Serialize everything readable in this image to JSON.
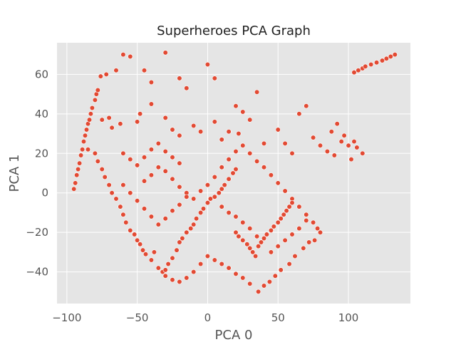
{
  "chart_data": {
    "type": "scatter",
    "title": "Superheroes PCA Graph",
    "xlabel": "PCA 0",
    "ylabel": "PCA 1",
    "xlim": [
      -107,
      144
    ],
    "ylim": [
      -56,
      76
    ],
    "x_ticks": [
      -100,
      -50,
      0,
      50,
      100
    ],
    "y_ticks": [
      -40,
      -20,
      0,
      20,
      40,
      60
    ],
    "x_tick_labels": [
      "−100",
      "−50",
      "0",
      "50",
      "100"
    ],
    "y_tick_labels": [
      "−40",
      "−20",
      "0",
      "20",
      "40",
      "60"
    ],
    "grid": true,
    "legend": "none",
    "colors": {
      "points": "#e24a33",
      "background": "#e5e5e5",
      "grid": "#ffffff"
    },
    "series": [
      {
        "points": [
          [
            -95,
            2
          ],
          [
            -94,
            5
          ],
          [
            -93,
            9
          ],
          [
            -92,
            12
          ],
          [
            -91,
            15
          ],
          [
            -90,
            19
          ],
          [
            -89,
            22
          ],
          [
            -88,
            26
          ],
          [
            -87,
            29
          ],
          [
            -86,
            32
          ],
          [
            -85,
            35
          ],
          [
            -84,
            37
          ],
          [
            -83,
            40
          ],
          [
            -82,
            43
          ],
          [
            -80,
            47
          ],
          [
            -79,
            50
          ],
          [
            -78,
            52
          ],
          [
            -76,
            59
          ],
          [
            -72,
            60
          ],
          [
            -65,
            62
          ],
          [
            -60,
            70
          ],
          [
            -55,
            69
          ],
          [
            -45,
            62
          ],
          [
            -40,
            56
          ],
          [
            -30,
            71
          ],
          [
            -20,
            58
          ],
          [
            -15,
            53
          ],
          [
            0,
            65
          ],
          [
            5,
            58
          ],
          [
            35,
            51
          ],
          [
            -70,
            38
          ],
          [
            -75,
            37
          ],
          [
            -68,
            33
          ],
          [
            -62,
            35
          ],
          [
            -50,
            36
          ],
          [
            -48,
            40
          ],
          [
            -40,
            45
          ],
          [
            -30,
            38
          ],
          [
            -25,
            32
          ],
          [
            -20,
            29
          ],
          [
            -10,
            34
          ],
          [
            -5,
            31
          ],
          [
            5,
            36
          ],
          [
            10,
            27
          ],
          [
            15,
            31
          ],
          [
            20,
            44
          ],
          [
            25,
            41
          ],
          [
            22,
            30
          ],
          [
            30,
            37
          ],
          [
            40,
            25
          ],
          [
            50,
            32
          ],
          [
            55,
            25
          ],
          [
            60,
            20
          ],
          [
            65,
            40
          ],
          [
            70,
            44
          ],
          [
            75,
            28
          ],
          [
            80,
            24
          ],
          [
            85,
            21
          ],
          [
            90,
            19
          ],
          [
            95,
            26
          ],
          [
            100,
            24
          ],
          [
            102,
            17
          ],
          [
            104,
            26
          ],
          [
            106,
            23
          ],
          [
            110,
            20
          ],
          [
            97,
            29
          ],
          [
            92,
            35
          ],
          [
            88,
            31
          ],
          [
            -85,
            22
          ],
          [
            -80,
            20
          ],
          [
            -78,
            16
          ],
          [
            -75,
            12
          ],
          [
            -73,
            8
          ],
          [
            -70,
            4
          ],
          [
            -68,
            0
          ],
          [
            -65,
            -3
          ],
          [
            -62,
            -7
          ],
          [
            -60,
            -11
          ],
          [
            -58,
            -15
          ],
          [
            -55,
            -19
          ],
          [
            -52,
            -21
          ],
          [
            -50,
            -24
          ],
          [
            -48,
            -26
          ],
          [
            -46,
            -29
          ],
          [
            -44,
            -31
          ],
          [
            -40,
            -34
          ],
          [
            -38,
            -30
          ],
          [
            -35,
            -38
          ],
          [
            -32,
            -40
          ],
          [
            -30,
            -42
          ],
          [
            -28,
            -36
          ],
          [
            -25,
            -33
          ],
          [
            -22,
            -29
          ],
          [
            -20,
            -25
          ],
          [
            -18,
            -23
          ],
          [
            -15,
            -20
          ],
          [
            -12,
            -18
          ],
          [
            -10,
            -16
          ],
          [
            -8,
            -13
          ],
          [
            -5,
            -10
          ],
          [
            -3,
            -8
          ],
          [
            0,
            -5
          ],
          [
            2,
            -3
          ],
          [
            5,
            -2
          ],
          [
            8,
            0
          ],
          [
            10,
            2
          ],
          [
            12,
            4
          ],
          [
            15,
            7
          ],
          [
            18,
            10
          ],
          [
            20,
            12
          ],
          [
            -45,
            6
          ],
          [
            -40,
            9
          ],
          [
            -35,
            13
          ],
          [
            -30,
            11
          ],
          [
            -25,
            7
          ],
          [
            -20,
            3
          ],
          [
            -15,
            0
          ],
          [
            -10,
            -3
          ],
          [
            -5,
            1
          ],
          [
            0,
            4
          ],
          [
            5,
            8
          ],
          [
            10,
            13
          ],
          [
            15,
            17
          ],
          [
            20,
            21
          ],
          [
            25,
            24
          ],
          [
            30,
            20
          ],
          [
            35,
            16
          ],
          [
            40,
            13
          ],
          [
            45,
            9
          ],
          [
            50,
            5
          ],
          [
            55,
            1
          ],
          [
            60,
            -3
          ],
          [
            65,
            -7
          ],
          [
            70,
            -11
          ],
          [
            75,
            -15
          ],
          [
            78,
            -18
          ],
          [
            80,
            -20
          ],
          [
            76,
            -24
          ],
          [
            72,
            -25
          ],
          [
            68,
            -28
          ],
          [
            62,
            -32
          ],
          [
            58,
            -36
          ],
          [
            52,
            -39
          ],
          [
            48,
            -42
          ],
          [
            44,
            -45
          ],
          [
            40,
            -47
          ],
          [
            36,
            -50
          ],
          [
            30,
            -46
          ],
          [
            25,
            -43
          ],
          [
            20,
            -41
          ],
          [
            15,
            -38
          ],
          [
            10,
            -36
          ],
          [
            5,
            -34
          ],
          [
            0,
            -32
          ],
          [
            -5,
            -36
          ],
          [
            -10,
            -40
          ],
          [
            -15,
            -43
          ],
          [
            -20,
            -45
          ],
          [
            -25,
            -44
          ],
          [
            -30,
            -39
          ],
          [
            20,
            -20
          ],
          [
            22,
            -22
          ],
          [
            25,
            -24
          ],
          [
            28,
            -26
          ],
          [
            30,
            -28
          ],
          [
            32,
            -30
          ],
          [
            34,
            -32
          ],
          [
            36,
            -27
          ],
          [
            38,
            -25
          ],
          [
            40,
            -23
          ],
          [
            42,
            -21
          ],
          [
            45,
            -19
          ],
          [
            47,
            -17
          ],
          [
            50,
            -15
          ],
          [
            52,
            -13
          ],
          [
            54,
            -11
          ],
          [
            56,
            -9
          ],
          [
            58,
            -7
          ],
          [
            60,
            -5
          ],
          [
            35,
            -22
          ],
          [
            30,
            -18
          ],
          [
            25,
            -15
          ],
          [
            20,
            -12
          ],
          [
            15,
            -10
          ],
          [
            10,
            -7
          ],
          [
            -60,
            20
          ],
          [
            -55,
            17
          ],
          [
            -50,
            14
          ],
          [
            -45,
            18
          ],
          [
            -40,
            22
          ],
          [
            -35,
            25
          ],
          [
            -30,
            21
          ],
          [
            -25,
            18
          ],
          [
            -20,
            15
          ],
          [
            -60,
            4
          ],
          [
            -55,
            0
          ],
          [
            -50,
            -4
          ],
          [
            -45,
            -8
          ],
          [
            -40,
            -12
          ],
          [
            -35,
            -16
          ],
          [
            -30,
            -13
          ],
          [
            -25,
            -9
          ],
          [
            -20,
            -6
          ],
          [
            -15,
            -2
          ],
          [
            45,
            -30
          ],
          [
            50,
            -27
          ],
          [
            55,
            -24
          ],
          [
            60,
            -21
          ],
          [
            65,
            -18
          ],
          [
            70,
            -14
          ],
          [
            104,
            61
          ],
          [
            107,
            62
          ],
          [
            110,
            63
          ],
          [
            112,
            64
          ],
          [
            116,
            65
          ],
          [
            120,
            66
          ],
          [
            124,
            67
          ],
          [
            127,
            68
          ],
          [
            130,
            69
          ],
          [
            133,
            70
          ]
        ]
      }
    ]
  }
}
